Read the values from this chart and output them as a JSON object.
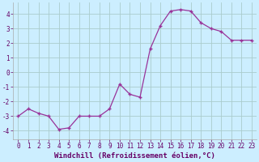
{
  "x": [
    0,
    1,
    2,
    3,
    4,
    5,
    6,
    7,
    8,
    9,
    10,
    11,
    12,
    13,
    14,
    15,
    16,
    17,
    18,
    19,
    20,
    21,
    22,
    23
  ],
  "y": [
    -3.0,
    -2.5,
    -2.8,
    -3.0,
    -3.9,
    -3.8,
    -3.0,
    -3.0,
    -3.0,
    -2.5,
    -0.8,
    -1.5,
    -1.7,
    1.6,
    3.2,
    4.2,
    4.3,
    4.2,
    3.4,
    3.0,
    2.8,
    2.2,
    2.2,
    2.2
  ],
  "line_color": "#993399",
  "marker": "+",
  "marker_size": 3.5,
  "marker_lw": 1.0,
  "bg_color": "#cceeff",
  "grid_color": "#aacccc",
  "xlabel": "Windchill (Refroidissement éolien,°C)",
  "xlabel_fontsize": 6.5,
  "tick_fontsize": 5.5,
  "ylim": [
    -4.6,
    4.8
  ],
  "xlim": [
    -0.5,
    23.5
  ],
  "yticks": [
    -4,
    -3,
    -2,
    -1,
    0,
    1,
    2,
    3,
    4
  ],
  "xticks": [
    0,
    1,
    2,
    3,
    4,
    5,
    6,
    7,
    8,
    9,
    10,
    11,
    12,
    13,
    14,
    15,
    16,
    17,
    18,
    19,
    20,
    21,
    22,
    23
  ],
  "line_width": 0.9,
  "spine_color": "#aaaaaa",
  "label_color": "#660066"
}
